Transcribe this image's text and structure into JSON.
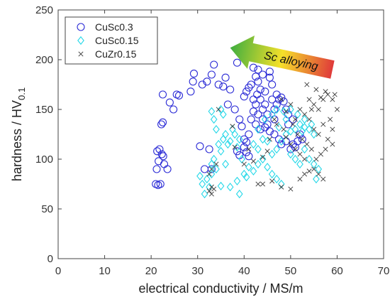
{
  "chart_data": {
    "type": "scatter",
    "title": "",
    "xlabel": "electrical conductivity / MS/m",
    "ylabel_main": "hardness / HV",
    "ylabel_sub": "0.1",
    "xlim": [
      0,
      70
    ],
    "ylim": [
      0,
      250
    ],
    "xticks": [
      0,
      10,
      20,
      30,
      40,
      50,
      60,
      70
    ],
    "yticks": [
      0,
      50,
      100,
      150,
      200,
      250
    ],
    "grid": false,
    "legend_position": "top-left",
    "annotation": {
      "text": "Sc alloying",
      "from": [
        59,
        190
      ],
      "to": [
        37,
        212
      ]
    },
    "series": [
      {
        "name": "CuSc0.3",
        "marker": "circle",
        "color": "#2b2bd6",
        "points": [
          [
            21.0,
            75
          ],
          [
            21.5,
            74
          ],
          [
            22.0,
            75
          ],
          [
            21.2,
            90
          ],
          [
            21.6,
            98
          ],
          [
            21.3,
            108
          ],
          [
            21.8,
            110
          ],
          [
            22.3,
            105
          ],
          [
            22.6,
            103
          ],
          [
            22.8,
            95
          ],
          [
            23.5,
            90
          ],
          [
            22.2,
            135
          ],
          [
            22.5,
            137
          ],
          [
            22.5,
            165
          ],
          [
            24.0,
            157
          ],
          [
            24.8,
            150
          ],
          [
            25.5,
            165
          ],
          [
            26.0,
            164
          ],
          [
            28.5,
            168
          ],
          [
            29.0,
            178
          ],
          [
            29.2,
            186
          ],
          [
            31.0,
            175
          ],
          [
            32.0,
            178
          ],
          [
            33.0,
            185
          ],
          [
            33.5,
            195
          ],
          [
            34.5,
            175
          ],
          [
            35.5,
            173
          ],
          [
            36.0,
            182
          ],
          [
            36.5,
            155
          ],
          [
            37.0,
            170
          ],
          [
            38.5,
            197
          ],
          [
            38.0,
            150
          ],
          [
            39.0,
            140
          ],
          [
            39.5,
            133
          ],
          [
            30.5,
            113
          ],
          [
            31.5,
            90
          ],
          [
            32.5,
            110
          ],
          [
            33.0,
            90
          ],
          [
            38.5,
            108
          ],
          [
            39.0,
            104
          ],
          [
            40.0,
            112
          ],
          [
            40.5,
            107
          ],
          [
            40.0,
            120
          ],
          [
            40.5,
            117
          ],
          [
            41.0,
            103
          ],
          [
            41.0,
            125
          ],
          [
            40.0,
            163
          ],
          [
            40.5,
            168
          ],
          [
            41.0,
            172
          ],
          [
            41.5,
            175
          ],
          [
            42.0,
            160
          ],
          [
            42.0,
            148
          ],
          [
            42.5,
            155
          ],
          [
            42.0,
            192
          ],
          [
            42.5,
            183
          ],
          [
            43.0,
            190
          ],
          [
            43.0,
            178
          ],
          [
            43.5,
            170
          ],
          [
            43.5,
            160
          ],
          [
            44.0,
            150
          ],
          [
            44.0,
            140
          ],
          [
            44.5,
            168
          ],
          [
            44.5,
            155
          ],
          [
            45.0,
            145
          ],
          [
            45.0,
            135
          ],
          [
            45.5,
            188
          ],
          [
            45.5,
            182
          ],
          [
            46.0,
            175
          ],
          [
            46.0,
            160
          ],
          [
            46.5,
            150
          ],
          [
            46.5,
            140
          ],
          [
            47.0,
            165
          ],
          [
            47.0,
            155
          ],
          [
            47.5,
            160
          ],
          [
            48.0,
            162
          ],
          [
            48.5,
            158
          ],
          [
            49.0,
            150
          ],
          [
            49.5,
            145
          ],
          [
            43.5,
            130
          ],
          [
            44.5,
            132
          ],
          [
            45.5,
            128
          ],
          [
            46.5,
            125
          ],
          [
            47.5,
            120
          ],
          [
            48.0,
            115
          ],
          [
            49.0,
            118
          ],
          [
            50.0,
            110
          ],
          [
            50.5,
            115
          ],
          [
            51.0,
            112
          ],
          [
            51.5,
            118
          ],
          [
            52.0,
            125
          ],
          [
            52.5,
            120
          ],
          [
            49.5,
            135
          ],
          [
            50.5,
            140
          ],
          [
            41.5,
            140
          ],
          [
            42.5,
            135
          ],
          [
            43.0,
            145
          ],
          [
            44.0,
            185
          ],
          [
            42.8,
            165
          ]
        ]
      },
      {
        "name": "CuSc0.15",
        "marker": "diamond",
        "color": "#25d8e8",
        "points": [
          [
            30.5,
            83
          ],
          [
            31.0,
            75
          ],
          [
            31.5,
            65
          ],
          [
            32.0,
            80
          ],
          [
            32.5,
            72
          ],
          [
            33.0,
            85
          ],
          [
            33.0,
            95
          ],
          [
            33.5,
            100
          ],
          [
            34.0,
            90
          ],
          [
            34.5,
            115
          ],
          [
            35.0,
            108
          ],
          [
            35.5,
            120
          ],
          [
            33.0,
            148
          ],
          [
            33.5,
            140
          ],
          [
            34.0,
            130
          ],
          [
            35.0,
            150
          ],
          [
            35.5,
            145
          ],
          [
            36.0,
            125
          ],
          [
            36.5,
            115
          ],
          [
            37.0,
            118
          ],
          [
            37.5,
            130
          ],
          [
            38.0,
            125
          ],
          [
            38.5,
            112
          ],
          [
            39.0,
            120
          ],
          [
            39.5,
            100
          ],
          [
            40.0,
            85
          ],
          [
            35.0,
            73
          ],
          [
            37.0,
            72
          ],
          [
            38.5,
            78
          ],
          [
            40.5,
            82
          ],
          [
            42.0,
            88
          ],
          [
            43.0,
            95
          ],
          [
            44.0,
            100
          ],
          [
            45.0,
            92
          ],
          [
            46.0,
            85
          ],
          [
            47.0,
            80
          ],
          [
            48.0,
            75
          ],
          [
            42.0,
            115
          ],
          [
            43.0,
            110
          ],
          [
            44.0,
            120
          ],
          [
            45.0,
            118
          ],
          [
            46.0,
            105
          ],
          [
            47.0,
            110
          ],
          [
            48.0,
            118
          ],
          [
            49.0,
            125
          ],
          [
            50.0,
            128
          ],
          [
            51.0,
            130
          ],
          [
            52.0,
            135
          ],
          [
            53.0,
            132
          ],
          [
            54.0,
            130
          ],
          [
            55.0,
            125
          ],
          [
            43.0,
            130
          ],
          [
            44.5,
            140
          ],
          [
            46.0,
            145
          ],
          [
            47.0,
            150
          ],
          [
            48.5,
            148
          ],
          [
            50.0,
            150
          ],
          [
            51.5,
            145
          ],
          [
            53.0,
            140
          ],
          [
            54.5,
            135
          ],
          [
            50.0,
            105
          ],
          [
            51.0,
            100
          ],
          [
            52.0,
            95
          ],
          [
            53.0,
            110
          ],
          [
            54.0,
            100
          ],
          [
            55.0,
            95
          ],
          [
            56.0,
            90
          ],
          [
            55.5,
            80
          ],
          [
            41.0,
            92
          ],
          [
            39.0,
            65
          ],
          [
            36.0,
            95
          ],
          [
            49.0,
            140
          ],
          [
            52.5,
            128
          ],
          [
            47.5,
            132
          ]
        ]
      },
      {
        "name": "CuZr0.15",
        "marker": "x",
        "color": "#444444",
        "points": [
          [
            32.5,
            68
          ],
          [
            33.0,
            72
          ],
          [
            33.0,
            65
          ],
          [
            33.5,
            70
          ],
          [
            33.0,
            90
          ],
          [
            32.5,
            85
          ],
          [
            34.0,
            95
          ],
          [
            34.5,
            150
          ],
          [
            37.5,
            133
          ],
          [
            40.0,
            95
          ],
          [
            42.0,
            98
          ],
          [
            44.0,
            75
          ],
          [
            46.0,
            78
          ],
          [
            48.0,
            72
          ],
          [
            50.0,
            70
          ],
          [
            52.0,
            80
          ],
          [
            53.0,
            85
          ],
          [
            54.0,
            88
          ],
          [
            55.0,
            90
          ],
          [
            56.0,
            85
          ],
          [
            57.0,
            80
          ],
          [
            48.0,
            160
          ],
          [
            49.0,
            148
          ],
          [
            50.0,
            155
          ],
          [
            51.0,
            140
          ],
          [
            52.0,
            150
          ],
          [
            53.0,
            145
          ],
          [
            53.5,
            175
          ],
          [
            54.0,
            160
          ],
          [
            55.0,
            155
          ],
          [
            56.0,
            150
          ],
          [
            57.0,
            160
          ],
          [
            58.0,
            165
          ],
          [
            59.0,
            160
          ],
          [
            58.5,
            140
          ],
          [
            59.0,
            130
          ],
          [
            58.0,
            120
          ],
          [
            59.0,
            115
          ],
          [
            57.5,
            110
          ],
          [
            56.5,
            105
          ],
          [
            55.5,
            100
          ],
          [
            54.5,
            110
          ],
          [
            53.5,
            115
          ],
          [
            52.5,
            120
          ],
          [
            51.5,
            125
          ],
          [
            50.5,
            135
          ],
          [
            55.0,
            130
          ],
          [
            56.0,
            125
          ],
          [
            57.0,
            135
          ],
          [
            54.0,
            140
          ],
          [
            53.0,
            100
          ],
          [
            52.0,
            105
          ],
          [
            51.0,
            110
          ],
          [
            50.0,
            115
          ],
          [
            49.0,
            122
          ],
          [
            48.5,
            130
          ],
          [
            47.0,
            135
          ],
          [
            46.5,
            140
          ],
          [
            45.5,
            120
          ],
          [
            45.0,
            108
          ],
          [
            44.0,
            102
          ],
          [
            43.0,
            75
          ],
          [
            41.0,
            110
          ],
          [
            38.0,
            112
          ],
          [
            60.0,
            150
          ],
          [
            59.5,
            165
          ],
          [
            57.5,
            168
          ],
          [
            56.5,
            162
          ],
          [
            55.5,
            170
          ],
          [
            54.5,
            150
          ]
        ]
      }
    ]
  },
  "colors": {
    "axis": "#444444",
    "arrow_start": "#3fae3f",
    "arrow_mid": "#f5e02a",
    "arrow_end": "#e03a3a"
  }
}
